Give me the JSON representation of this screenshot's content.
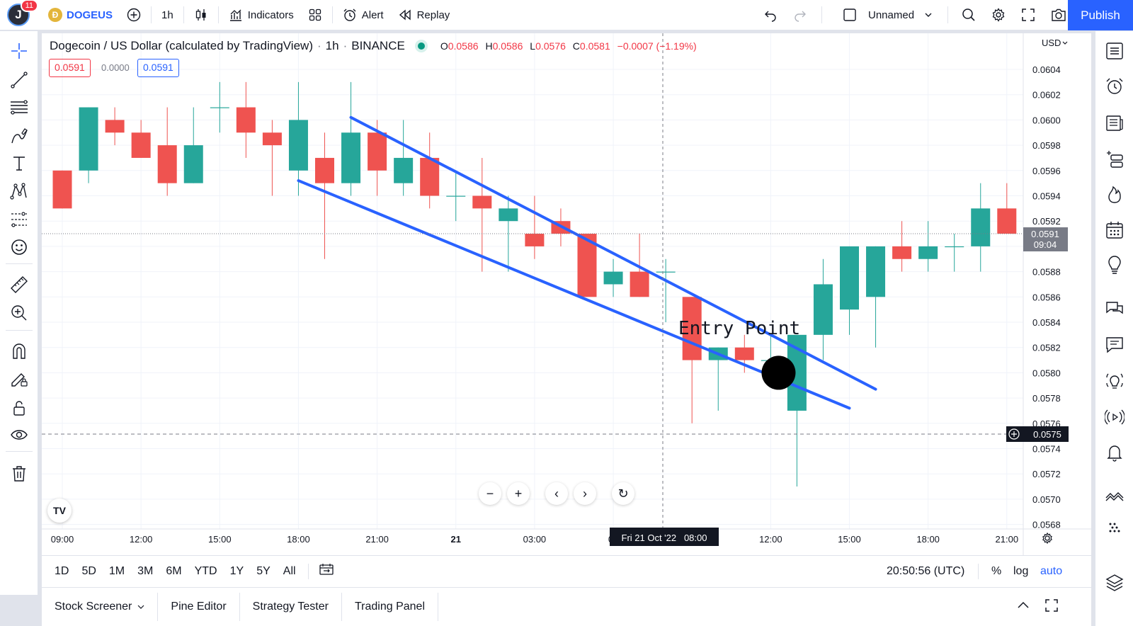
{
  "topbar": {
    "avatar_letter": "J",
    "notif_count": "11",
    "symbol": "DOGEUS",
    "interval": "1h",
    "indicators_label": "Indicators",
    "alert_label": "Alert",
    "replay_label": "Replay",
    "layout_name": "Unnamed",
    "publish_label": "Publish"
  },
  "legend": {
    "title": "Dogecoin / US Dollar (calculated by TradingView)",
    "interval": "1h",
    "exchange": "BINANCE",
    "o_label": "O",
    "o_value": "0.0586",
    "h_label": "H",
    "h_value": "0.0586",
    "l_label": "L",
    "l_value": "0.0576",
    "c_label": "C",
    "c_value": "0.0581",
    "change": "−0.0007 (−1.19%)",
    "sell_price": "0.0591",
    "spread": "0.0000",
    "buy_price": "0.0591"
  },
  "annotation": {
    "text": "Entry Point"
  },
  "price_axis": {
    "currency": "USD",
    "last_price": "0.0591",
    "countdown": "09:04",
    "crosshair_price": "0.0575"
  },
  "time_axis": {
    "crosshair_label": "Fri 21 Oct '22   08:00"
  },
  "colors": {
    "up": "#26a69a",
    "down": "#ef5350",
    "trendline": "#2962ff",
    "accent": "#2962ff"
  },
  "chart_data": {
    "type": "candlestick",
    "ylim": [
      0.0568,
      0.0605
    ],
    "y_ticks": [
      "0.0604",
      "0.0602",
      "0.0600",
      "0.0598",
      "0.0596",
      "0.0594",
      "0.0592",
      "0.0590",
      "0.0588",
      "0.0586",
      "0.0584",
      "0.0582",
      "0.0580",
      "0.0578",
      "0.0576",
      "0.0574",
      "0.0572",
      "0.0570",
      "0.0568"
    ],
    "x_ticks": [
      {
        "label": "09:00",
        "i": 0
      },
      {
        "label": "12:00",
        "i": 3
      },
      {
        "label": "15:00",
        "i": 6
      },
      {
        "label": "18:00",
        "i": 9
      },
      {
        "label": "21:00",
        "i": 12
      },
      {
        "label": "21",
        "i": 15,
        "bold": true
      },
      {
        "label": "03:00",
        "i": 18
      },
      {
        "label": "06",
        "i": 21
      },
      {
        "label": "12:00",
        "i": 27
      },
      {
        "label": "15:00",
        "i": 30
      },
      {
        "label": "18:00",
        "i": 33
      },
      {
        "label": "21:00",
        "i": 36
      }
    ],
    "candles": [
      {
        "o": 0.0596,
        "h": 0.0596,
        "l": 0.0593,
        "c": 0.0593
      },
      {
        "o": 0.0596,
        "h": 0.0601,
        "l": 0.0595,
        "c": 0.0601
      },
      {
        "o": 0.06,
        "h": 0.0601,
        "l": 0.0598,
        "c": 0.0599
      },
      {
        "o": 0.0599,
        "h": 0.06,
        "l": 0.0597,
        "c": 0.0597
      },
      {
        "o": 0.0598,
        "h": 0.0601,
        "l": 0.0594,
        "c": 0.0595
      },
      {
        "o": 0.0595,
        "h": 0.0601,
        "l": 0.0595,
        "c": 0.0598
      },
      {
        "o": 0.0601,
        "h": 0.0603,
        "l": 0.0599,
        "c": 0.0601
      },
      {
        "o": 0.0601,
        "h": 0.0603,
        "l": 0.0597,
        "c": 0.0599
      },
      {
        "o": 0.0599,
        "h": 0.06,
        "l": 0.0594,
        "c": 0.0598
      },
      {
        "o": 0.0596,
        "h": 0.0603,
        "l": 0.0594,
        "c": 0.06
      },
      {
        "o": 0.0597,
        "h": 0.0599,
        "l": 0.0589,
        "c": 0.0595
      },
      {
        "o": 0.0595,
        "h": 0.0603,
        "l": 0.0594,
        "c": 0.0599
      },
      {
        "o": 0.0599,
        "h": 0.06,
        "l": 0.0594,
        "c": 0.0596
      },
      {
        "o": 0.0595,
        "h": 0.06,
        "l": 0.0594,
        "c": 0.0597
      },
      {
        "o": 0.0597,
        "h": 0.0599,
        "l": 0.0593,
        "c": 0.0594
      },
      {
        "o": 0.0594,
        "h": 0.0596,
        "l": 0.0592,
        "c": 0.0594
      },
      {
        "o": 0.0594,
        "h": 0.0597,
        "l": 0.0588,
        "c": 0.0593
      },
      {
        "o": 0.0592,
        "h": 0.0594,
        "l": 0.0588,
        "c": 0.0593
      },
      {
        "o": 0.0591,
        "h": 0.0594,
        "l": 0.0589,
        "c": 0.059
      },
      {
        "o": 0.0592,
        "h": 0.0593,
        "l": 0.059,
        "c": 0.0591
      },
      {
        "o": 0.0591,
        "h": 0.0591,
        "l": 0.0586,
        "c": 0.0586
      },
      {
        "o": 0.0587,
        "h": 0.0589,
        "l": 0.0586,
        "c": 0.0588
      },
      {
        "o": 0.0588,
        "h": 0.0591,
        "l": 0.0586,
        "c": 0.0586
      },
      {
        "o": 0.0588,
        "h": 0.0589,
        "l": 0.0584,
        "c": 0.0588
      },
      {
        "o": 0.0586,
        "h": 0.0586,
        "l": 0.0576,
        "c": 0.0581
      },
      {
        "o": 0.0581,
        "h": 0.0582,
        "l": 0.0577,
        "c": 0.0582
      },
      {
        "o": 0.0582,
        "h": 0.0583,
        "l": 0.058,
        "c": 0.0581
      },
      {
        "o": 0.0581,
        "h": 0.0583,
        "l": 0.058,
        "c": 0.0581
      },
      {
        "o": 0.0577,
        "h": 0.0583,
        "l": 0.0571,
        "c": 0.0583
      },
      {
        "o": 0.0583,
        "h": 0.0589,
        "l": 0.0581,
        "c": 0.0587
      },
      {
        "o": 0.0585,
        "h": 0.059,
        "l": 0.0583,
        "c": 0.059
      },
      {
        "o": 0.0586,
        "h": 0.059,
        "l": 0.0582,
        "c": 0.059
      },
      {
        "o": 0.059,
        "h": 0.0592,
        "l": 0.0588,
        "c": 0.0589
      },
      {
        "o": 0.0589,
        "h": 0.0592,
        "l": 0.0588,
        "c": 0.059
      },
      {
        "o": 0.059,
        "h": 0.0591,
        "l": 0.0588,
        "c": 0.059
      },
      {
        "o": 0.059,
        "h": 0.0595,
        "l": 0.0588,
        "c": 0.0593
      },
      {
        "o": 0.0593,
        "h": 0.0595,
        "l": 0.0591,
        "c": 0.0591
      }
    ],
    "trendlines": [
      {
        "from": {
          "i": 11,
          "p": 0.06002
        },
        "to": {
          "i": 31,
          "p": 0.05787
        }
      },
      {
        "from": {
          "i": 9,
          "p": 0.05952
        },
        "to": {
          "i": 30,
          "p": 0.05772
        }
      }
    ],
    "markers": [
      {
        "i": 27.3,
        "p": 0.058,
        "shape": "circle"
      }
    ]
  },
  "range_bar": {
    "ranges": [
      "1D",
      "5D",
      "1M",
      "3M",
      "6M",
      "YTD",
      "1Y",
      "5Y",
      "All"
    ],
    "clock": "20:50:56 (UTC)",
    "percent": "%",
    "log": "log",
    "auto": "auto"
  },
  "bottom_panel": {
    "tabs": [
      "Stock Screener",
      "Pine Editor",
      "Strategy Tester",
      "Trading Panel"
    ]
  }
}
